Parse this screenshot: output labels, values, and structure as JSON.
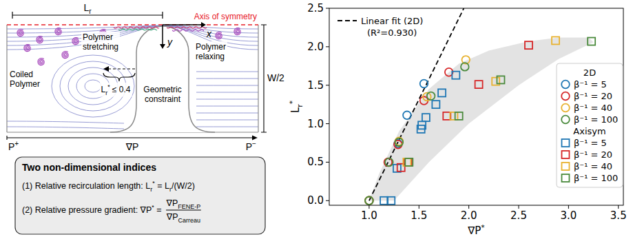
{
  "chart_data": {
    "type": "scatter",
    "x_label": [
      {
        "t": "∇P"
      },
      {
        "sup": "*"
      }
    ],
    "y_label": [
      {
        "t": "L"
      },
      {
        "sub": "r"
      },
      {
        "sup": "*"
      }
    ],
    "xlim": [
      0.6,
      3.55
    ],
    "ylim": [
      -0.06,
      2.5
    ],
    "xticks": [
      {
        "value": 1.0,
        "label": "1.0"
      },
      {
        "value": 1.5,
        "label": "1.5"
      },
      {
        "value": 2.0,
        "label": "2.0"
      },
      {
        "value": 2.5,
        "label": "2.5"
      },
      {
        "value": 3.0,
        "label": "3.0"
      },
      {
        "value": 3.5,
        "label": "3.5"
      }
    ],
    "yticks": [
      {
        "value": 0.0,
        "label": "0.0"
      },
      {
        "value": 0.5,
        "label": "0.5"
      },
      {
        "value": 1.0,
        "label": "1.0"
      },
      {
        "value": 1.5,
        "label": "1.5"
      },
      {
        "value": 2.0,
        "label": "2.0"
      },
      {
        "value": 2.5,
        "label": "2.5"
      }
    ],
    "grid": false,
    "legend": "right",
    "legend_groups": [
      "2D",
      "Axisym"
    ],
    "fit": {
      "name": "Linear fit (2D)",
      "x": [
        1.0,
        1.95
      ],
      "y": [
        0.0,
        2.5
      ],
      "line_style": "dashed",
      "color": "#000000"
    },
    "fit_r2": "(R²=0.930)",
    "region": {
      "x": [
        1.0,
        1.25,
        1.6,
        2.0,
        2.5,
        2.9,
        3.25,
        3.2,
        2.9,
        2.6,
        2.2,
        1.9,
        1.6,
        1.3,
        1.1,
        1.0
      ],
      "y": [
        0.0,
        0.0,
        0.5,
        1.0,
        1.5,
        1.84,
        2.06,
        2.12,
        2.12,
        2.07,
        1.95,
        1.78,
        1.45,
        0.9,
        0.35,
        0.0
      ],
      "color": "#d9d9d9"
    },
    "series": [
      {
        "name": "β⁻¹ = 5",
        "group": "2D",
        "marker": "circle",
        "color": "#1f77b4",
        "x": [
          1.0,
          1.29,
          1.38,
          1.55
        ],
        "y": [
          0.0,
          0.74,
          1.11,
          1.52
        ]
      },
      {
        "name": "β⁻¹ = 20",
        "group": "2D",
        "marker": "circle",
        "color": "#d62728",
        "x": [
          1.0,
          1.19,
          1.29,
          1.55,
          1.8
        ],
        "y": [
          0.0,
          0.5,
          0.73,
          1.3,
          1.67
        ]
      },
      {
        "name": "β⁻¹ = 40",
        "group": "2D",
        "marker": "circle",
        "color": "#e8b230",
        "x": [
          1.0,
          1.3,
          1.58,
          1.97
        ],
        "y": [
          0.0,
          0.77,
          1.35,
          1.83
        ]
      },
      {
        "name": "β⁻¹ = 100",
        "group": "2D",
        "marker": "circle",
        "color": "#4a8a3c",
        "x": [
          1.0,
          1.2,
          1.3,
          1.62,
          1.96
        ],
        "y": [
          0.0,
          0.5,
          0.76,
          1.36,
          1.74
        ]
      },
      {
        "name": "β⁻¹ = 5",
        "group": "Axisym",
        "marker": "square",
        "color": "#1f77b4",
        "x": [
          1.15,
          1.22,
          1.28,
          1.52,
          1.53,
          1.57,
          1.67,
          1.73,
          1.87
        ],
        "y": [
          0.0,
          0.0,
          0.42,
          0.93,
          0.98,
          1.08,
          1.25,
          1.4,
          1.63
        ]
      },
      {
        "name": "β⁻¹ = 20",
        "group": "Axisym",
        "marker": "square",
        "color": "#d62728",
        "x": [
          1.32,
          1.39,
          1.78,
          2.1,
          2.6
        ],
        "y": [
          0.43,
          0.5,
          1.1,
          1.51,
          2.02
        ]
      },
      {
        "name": "β⁻¹ = 40",
        "group": "Axisym",
        "marker": "square",
        "color": "#e8b230",
        "x": [
          1.38,
          1.85,
          2.27,
          2.87
        ],
        "y": [
          0.5,
          1.1,
          1.55,
          2.08
        ]
      },
      {
        "name": "β⁻¹ = 100",
        "group": "Axisym",
        "marker": "square",
        "color": "#4a8a3c",
        "x": [
          1.4,
          1.9,
          2.32,
          3.23
        ],
        "y": [
          0.5,
          1.1,
          1.57,
          2.07
        ]
      }
    ]
  },
  "diagram": {
    "symmetry_axis": "Axis of symmetry",
    "recirculation_length": [
      {
        "t": "L"
      },
      {
        "sub": "r"
      }
    ],
    "x_axis": "x",
    "y_axis": "y",
    "coiled": "Coiled Polymer",
    "stretching": "Polymer stretching",
    "relaxing": "Polymer relaxing",
    "constraint": "Geometric constraint",
    "constraint_limit": [
      {
        "t": "L"
      },
      {
        "sub": "r"
      },
      {
        "sup": "*"
      },
      {
        "t": " ≤ 0.4"
      }
    ],
    "half_width": "W/2",
    "inlet": [
      {
        "t": "P"
      },
      {
        "sup": "+"
      }
    ],
    "gradient": "∇P",
    "outlet": [
      {
        "t": "P"
      },
      {
        "sup": "−"
      }
    ],
    "indices_title": "Two non-dimensional indices",
    "index_1": [
      {
        "t": "(1) Relative recirculation length: "
      },
      {
        "t": "L"
      },
      {
        "sub": "r"
      },
      {
        "sup": "*"
      },
      {
        "t": " = L"
      },
      {
        "sub": "r"
      },
      {
        "t": "/(W/2)"
      }
    ],
    "index_2": [
      {
        "t": "(2) Relative pressure gradient: ∇P"
      },
      {
        "sup": "*"
      },
      {
        "t": " = "
      }
    ],
    "index_2_numerator": [
      {
        "t": "∇P"
      },
      {
        "sub": "FENE-P"
      }
    ],
    "index_2_denominator": [
      {
        "t": "∇P"
      },
      {
        "sub": "Carreau"
      }
    ]
  }
}
